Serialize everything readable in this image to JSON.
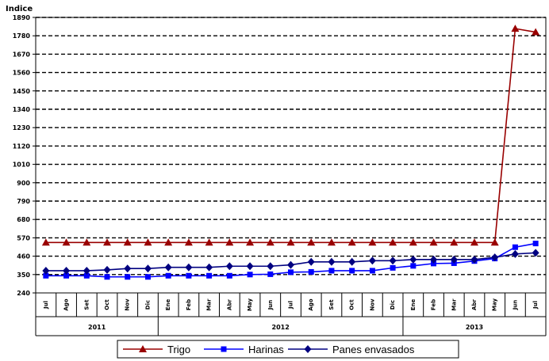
{
  "chart_data": {
    "type": "line",
    "title": "",
    "ylabel": "Indice",
    "xlabel": "",
    "ylim": [
      240,
      1890
    ],
    "yticks": [
      240,
      350,
      460,
      570,
      680,
      790,
      900,
      1010,
      1120,
      1230,
      1340,
      1450,
      1560,
      1670,
      1780,
      1890
    ],
    "grid": true,
    "legend_position": "bottom",
    "categories": [
      "Jul",
      "Ago",
      "Set",
      "Oct",
      "Nov",
      "Dic",
      "Ene",
      "Feb",
      "Mar",
      "Abr",
      "May",
      "Jun",
      "Jul",
      "Ago",
      "Set",
      "Oct",
      "Nov",
      "Dic",
      "Ene",
      "Feb",
      "Mar",
      "Abr",
      "May",
      "Jun",
      "Jul"
    ],
    "year_groups": [
      {
        "label": "2011",
        "start": 0,
        "end": 5
      },
      {
        "label": "2012",
        "start": 6,
        "end": 17
      },
      {
        "label": "2013",
        "start": 18,
        "end": 24
      }
    ],
    "series": [
      {
        "name": "Trigo",
        "color": "#990000",
        "marker": "triangle",
        "values": [
          542,
          542,
          542,
          542,
          542,
          542,
          542,
          542,
          542,
          542,
          542,
          542,
          542,
          542,
          542,
          542,
          542,
          542,
          542,
          542,
          542,
          542,
          542,
          1823,
          1802
        ]
      },
      {
        "name": "Harinas",
        "color": "#0000ff",
        "marker": "square",
        "values": [
          343,
          343,
          343,
          336,
          336,
          336,
          343,
          343,
          343,
          343,
          350,
          352,
          364,
          366,
          373,
          373,
          373,
          390,
          402,
          416,
          418,
          431,
          446,
          514,
          536
        ]
      },
      {
        "name": "Panes envasados",
        "color": "#000080",
        "marker": "diamond",
        "values": [
          373,
          373,
          373,
          378,
          386,
          386,
          393,
          393,
          393,
          400,
          400,
          400,
          408,
          426,
          426,
          426,
          433,
          433,
          440,
          440,
          440,
          440,
          453,
          473,
          480
        ]
      }
    ]
  }
}
